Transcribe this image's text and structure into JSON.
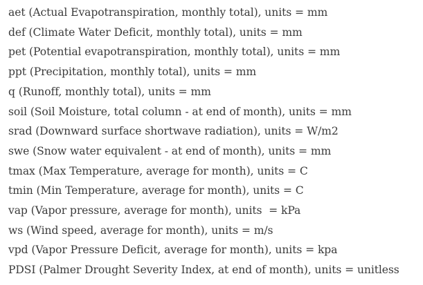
{
  "variables": [
    "aet (Actual Evapotranspiration, monthly total), units = mm",
    "def (Climate Water Deficit, monthly total), units = mm",
    "pet (Potential evapotranspiration, monthly total), units = mm",
    "ppt (Precipitation, monthly total), units = mm",
    "q (Runoff, monthly total), units = mm",
    "soil (Soil Moisture, total column - at end of month), units = mm",
    "srad (Downward surface shortwave radiation), units = W/m2",
    "swe (Snow water equivalent - at end of month), units = mm",
    "tmax (Max Temperature, average for month), units = C",
    "tmin (Min Temperature, average for month), units = C",
    "vap (Vapor pressure, average for month), units  = kPa",
    "ws (Wind speed, average for month), units = m/s",
    "vpd (Vapor Pressure Deficit, average for month), units = kpa",
    "PDSI (Palmer Drought Severity Index, at end of month), units = unitless"
  ]
}
